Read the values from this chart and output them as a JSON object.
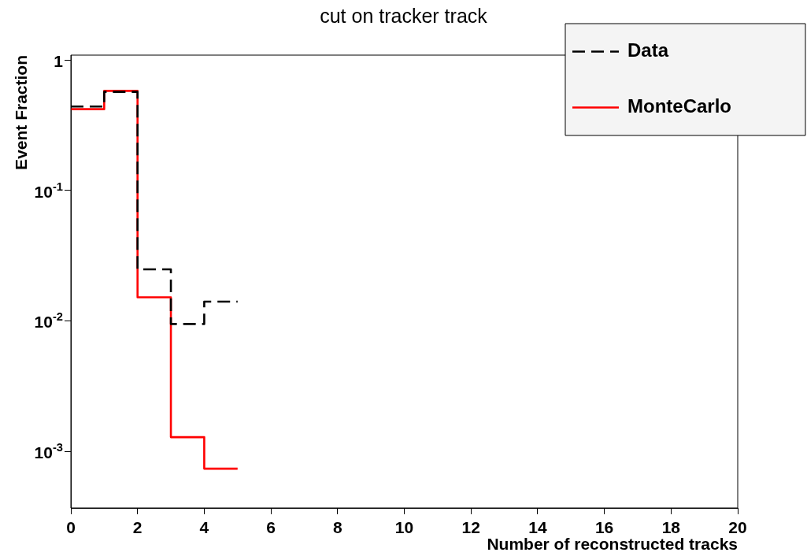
{
  "chart_data": {
    "type": "histogram",
    "title": "cut on tracker track",
    "xlabel": "Number of reconstructed tracks",
    "ylabel": "Event Fraction",
    "bins": [
      0,
      1,
      2,
      3,
      4,
      5
    ],
    "series": [
      {
        "name": "Data",
        "color": "#000000",
        "line_style": "dashed",
        "values": [
          0.44,
          0.57,
          0.0249,
          0.0095,
          0.0141
        ]
      },
      {
        "name": "MonteCarlo",
        "color": "#ff0000",
        "line_style": "solid",
        "values": [
          0.42,
          0.58,
          0.0152,
          0.00129,
          0.00074
        ]
      }
    ],
    "log": "y",
    "xlim": [
      0,
      20
    ],
    "xticks": [
      0,
      2,
      4,
      6,
      8,
      10,
      12,
      14,
      16,
      18,
      20
    ],
    "ylim": [
      0.00037,
      1.09
    ],
    "yticks": [
      {
        "value": 0.001,
        "label": "10$^{-3}$"
      },
      {
        "value": 0.01,
        "label": "10$^{-2}$"
      },
      {
        "value": 0.1,
        "label": "10$^{-1}$"
      },
      1
    ],
    "grid": false,
    "legend": "top right",
    "marker": "none"
  }
}
